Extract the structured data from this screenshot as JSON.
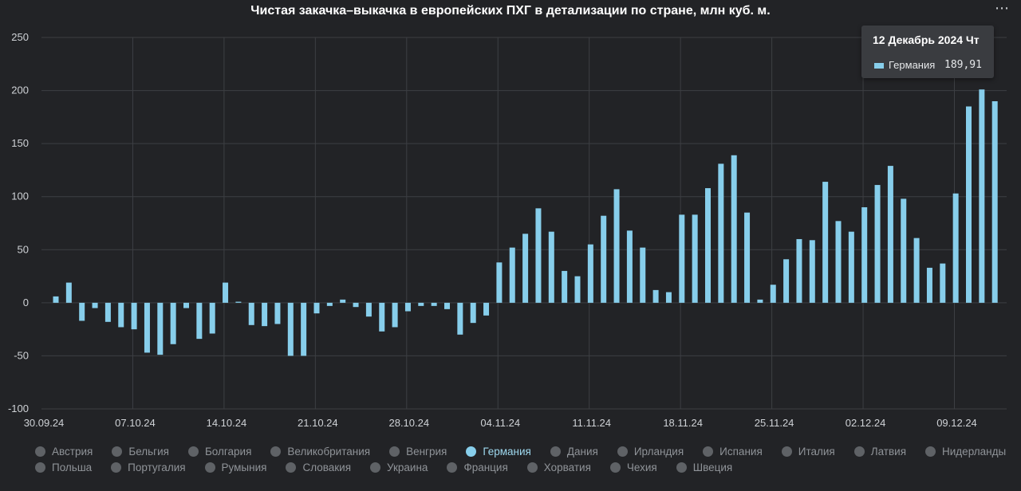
{
  "title": "Чистая закачка–выкачка в европейских ПХГ в детализации по стране, млн куб. м.",
  "menu_icon": "ellipsis-icon",
  "tooltip": {
    "title": "12 Декабрь 2024 Чт",
    "series_name": "Германия",
    "value": "189,91"
  },
  "legend": [
    [
      "Австрия",
      "Бельгия",
      "Болгария",
      "Великобритания",
      "Венгрия",
      "Германия",
      "Дания",
      "Ирландия",
      "Испания",
      "Италия",
      "Латвия",
      "Нидерланды"
    ],
    [
      "Польша",
      "Португалия",
      "Румыния",
      "Словакия",
      "Украина",
      "Франция",
      "Хорватия",
      "Чехия",
      "Швеция"
    ]
  ],
  "active_series": "Германия",
  "colors": {
    "bar": "#87ceeb",
    "background": "#222326",
    "grid": "#3d3f43"
  },
  "chart_data": {
    "type": "bar",
    "title": "Чистая закачка–выкачка в европейских ПХГ в детализации по стране, млн куб. м.",
    "ylim": [
      -100,
      250
    ],
    "yticks": [
      250,
      200,
      150,
      100,
      50,
      0,
      -50,
      -100
    ],
    "xticks": [
      "30.09.24",
      "07.10.24",
      "14.10.24",
      "21.10.24",
      "28.10.24",
      "04.11.24",
      "11.11.24",
      "18.11.24",
      "25.11.24",
      "02.12.24",
      "09.12.24"
    ],
    "x_start": "2024-09-30",
    "grid": true,
    "series": [
      {
        "name": "Германия",
        "values": [
          6,
          19,
          -17,
          -5,
          -18,
          -23,
          -25,
          -47,
          -49,
          -39,
          -5,
          -34,
          -29,
          19,
          1,
          -21,
          -22,
          -20,
          -50,
          -50,
          -10,
          -3,
          3,
          -4,
          -13,
          -27,
          -23,
          -8,
          -3,
          -3,
          -6,
          -30,
          -19,
          -12,
          38,
          52,
          65,
          89,
          67,
          30,
          25,
          55,
          82,
          107,
          68,
          52,
          12,
          10,
          83,
          83,
          108,
          131,
          139,
          85,
          3,
          17,
          41,
          60,
          59,
          114,
          77,
          67,
          90,
          111,
          129,
          98,
          61,
          33,
          37,
          103,
          185,
          201,
          189.91
        ]
      }
    ]
  }
}
